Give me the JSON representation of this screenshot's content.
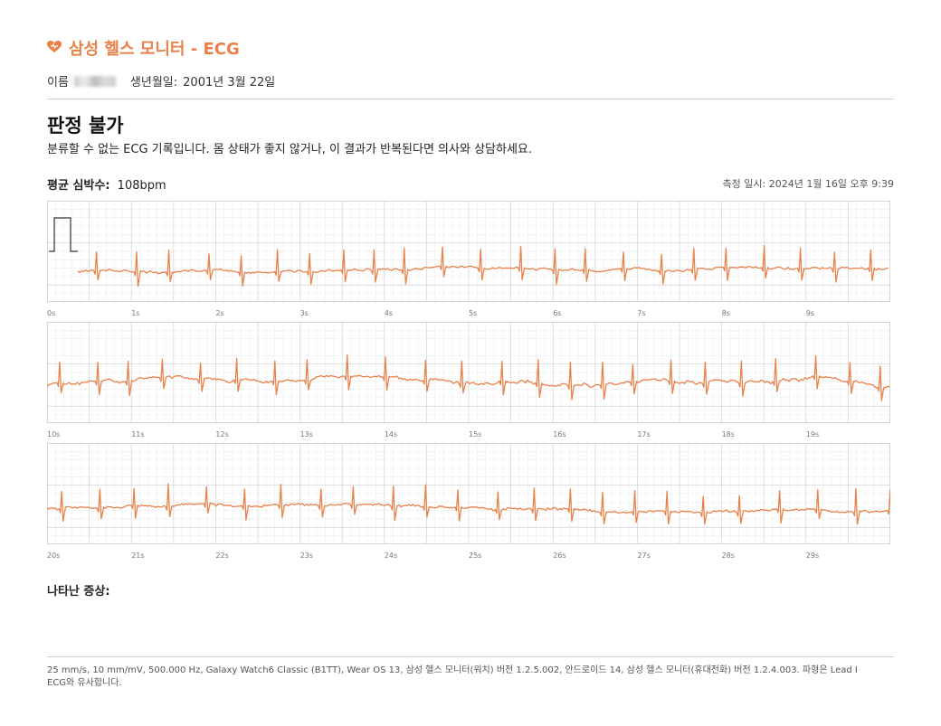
{
  "header": {
    "app_title": "삼성 헬스 모니터 - ECG",
    "icon": "heart-icon",
    "accent_color": "#e9814a"
  },
  "patient": {
    "name_label": "이름",
    "birth_label": "생년월일:",
    "birth_value": "2001년 3월 22일"
  },
  "result": {
    "title": "판정 불가",
    "description": "분류할 수 없는 ECG 기록입니다. 몸 상태가 좋지 않거나, 이 결과가 반복된다면 의사와 상담하세요."
  },
  "heart_rate": {
    "label": "평균 심박수:",
    "value": "108bpm"
  },
  "timestamp": "측정 일시: 2024년 1월 16일 오후 9:39",
  "strips": [
    {
      "ticks": [
        "0s",
        "1s",
        "2s",
        "3s",
        "4s",
        "5s",
        "6s",
        "7s",
        "8s",
        "9s"
      ]
    },
    {
      "ticks": [
        "10s",
        "11s",
        "12s",
        "13s",
        "14s",
        "15s",
        "16s",
        "17s",
        "18s",
        "19s"
      ]
    },
    {
      "ticks": [
        "20s",
        "21s",
        "22s",
        "23s",
        "24s",
        "25s",
        "26s",
        "27s",
        "28s",
        "29s"
      ]
    }
  ],
  "symptoms_label": "나타난 증상:",
  "footer": "25 mm/s, 10 mm/mV, 500.000 Hz, Galaxy Watch6 Classic (B1TT), Wear OS 13, 삼성 헬스 모니터(워치) 버전 1.2.5.002, 안드로이드 14, 삼성 헬스 모니터(휴대전화) 버전 1.2.4.003. 파형은 Lead I ECG와 유사합니다.",
  "waveform_color": "#e9814a",
  "grid_minor_color": "#ececec",
  "grid_major_color": "#d6d6d6"
}
